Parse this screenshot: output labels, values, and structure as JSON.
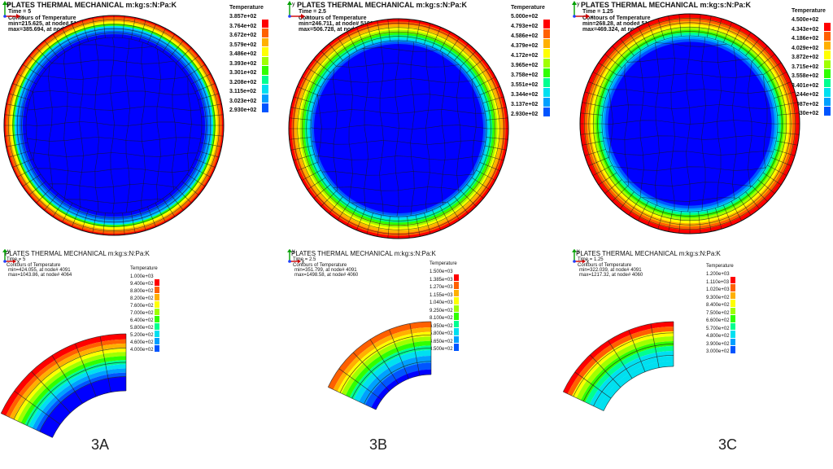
{
  "colors": [
    "#0000ff",
    "#0055ff",
    "#00a0ff",
    "#00e0f0",
    "#00ff90",
    "#30ff00",
    "#a0ff00",
    "#ffff00",
    "#ffb000",
    "#ff6000",
    "#ff0000"
  ],
  "panels": [
    {
      "id": "3A-top",
      "header": {
        "title": "PLATES THERMAL MECHANICAL m:kg:s:N:Pa:K",
        "time": "Time =        5",
        "contours": "Contours of Temperature",
        "min": "min=215.625, at node# 5186",
        "max": "max=385.694, at node# 4167"
      },
      "legend": {
        "title": "Temperature",
        "labels": [
          "3.857e+02",
          "3.764e+02",
          "3.672e+02",
          "3.579e+02",
          "3.486e+02",
          "3.393e+02",
          "3.301e+02",
          "3.208e+02",
          "3.115e+02",
          "3.023e+02",
          "2.930e+02"
        ]
      }
    },
    {
      "id": "3B-top",
      "header": {
        "title": "PLATES THERMAL MECHANICAL m:kg:s:N:Pa:K",
        "time": "Time =        2.5",
        "contours": "Contours of Temperature",
        "min": "min=246.711, at node# 5186",
        "max": "max=506.728, at node# 4165"
      },
      "legend": {
        "title": "Temperature",
        "labels": [
          "5.000e+02",
          "4.793e+02",
          "4.586e+02",
          "4.379e+02",
          "4.172e+02",
          "3.965e+02",
          "3.758e+02",
          "3.551e+02",
          "3.344e+02",
          "3.137e+02",
          "2.930e+02"
        ]
      }
    },
    {
      "id": "3C-top",
      "header": {
        "title": "PLATES THERMAL MECHANICAL m:kg:s:N:Pa:K",
        "time": "Time =        1.25",
        "contours": "Contours of Temperature",
        "min": "min=268.28, at node# 5186",
        "max": "max=469.324, at node# 4186"
      },
      "legend": {
        "title": "Temperature",
        "labels": [
          "4.500e+02",
          "4.343e+02",
          "4.186e+02",
          "4.029e+02",
          "3.872e+02",
          "3.715e+02",
          "3.558e+02",
          "3.401e+02",
          "3.244e+02",
          "3.087e+02",
          "2.930e+02"
        ]
      }
    },
    {
      "id": "3A-bottom",
      "header": {
        "title": "PLATES THERMAL MECHANICAL m:kg:s:N:Pa:K",
        "time": "Time =        5",
        "contours": "Contours of Temperature",
        "min": "min=424.055, at node# 4091",
        "max": "max=1043.86, at node# 4064"
      },
      "legend": {
        "title": "Temperature",
        "labels": [
          "1.000e+03",
          "9.400e+02",
          "8.800e+02",
          "8.200e+02",
          "7.600e+02",
          "7.000e+02",
          "6.400e+02",
          "5.800e+02",
          "5.200e+02",
          "4.600e+02",
          "4.000e+02"
        ]
      }
    },
    {
      "id": "3B-bottom",
      "header": {
        "title": "PLATES THERMAL MECHANICAL m:kg:s:N:Pa:K",
        "time": "Time =        2.5",
        "contours": "Contours of Temperature",
        "min": "min=351.799, at node# 4091",
        "max": "max=1498.58, at node# 4060"
      },
      "legend": {
        "title": "Temperature",
        "labels": [
          "1.500e+03",
          "1.385e+03",
          "1.270e+03",
          "1.155e+03",
          "1.040e+03",
          "9.250e+02",
          "8.100e+02",
          "6.950e+02",
          "5.800e+02",
          "4.650e+02",
          "3.500e+02"
        ]
      }
    },
    {
      "id": "3C-bottom",
      "header": {
        "title": "PLATES THERMAL MECHANICAL m:kg:s:N:Pa:K",
        "time": "Time =        1.25",
        "contours": "Contours of Temperature",
        "min": "min=322.039, at node# 4091",
        "max": "max=1217.32, at node# 4060"
      },
      "legend": {
        "title": "Temperature",
        "labels": [
          "1.200e+03",
          "1.110e+03",
          "1.020e+03",
          "9.300e+02",
          "8.400e+02",
          "7.500e+02",
          "6.600e+02",
          "5.700e+02",
          "4.800e+02",
          "3.900e+02",
          "3.000e+02"
        ]
      }
    }
  ],
  "captions": [
    "3A",
    "3B",
    "3C"
  ],
  "axis": {
    "x": "x",
    "y": "y"
  }
}
